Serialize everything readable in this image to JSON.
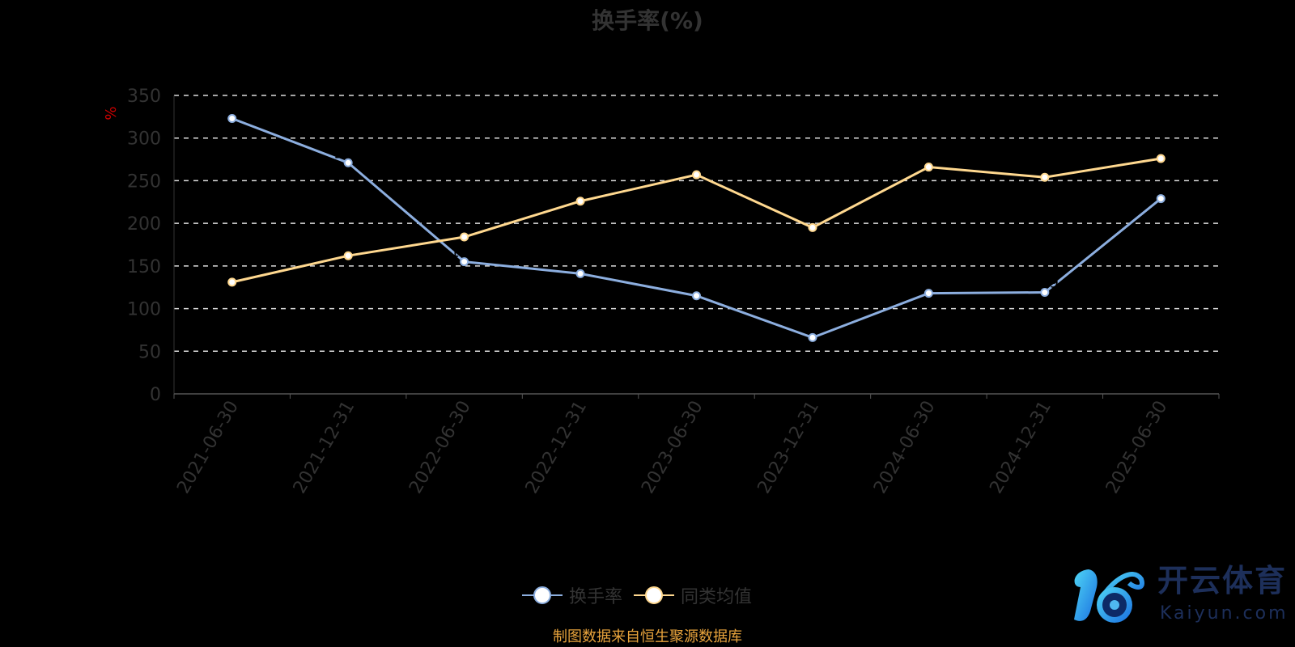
{
  "chart_data": {
    "type": "line",
    "title": "换手率(%)",
    "ylabel": "%",
    "xlabel": "",
    "ylim": [
      0,
      350
    ],
    "yticks": [
      0,
      50,
      100,
      150,
      200,
      250,
      300,
      350
    ],
    "grid": true,
    "legend_position": "bottom",
    "categories": [
      "2021-06-30",
      "2021-12-31",
      "2022-06-30",
      "2022-12-31",
      "2023-06-30",
      "2023-12-31",
      "2024-06-30",
      "2024-12-31",
      "2025-06-30"
    ],
    "series": [
      {
        "name": "换手率",
        "color": "#8caedf",
        "values": [
          323,
          271,
          155,
          141,
          115,
          66,
          118,
          119,
          229
        ]
      },
      {
        "name": "同类均值",
        "color": "#ffd88f",
        "values": [
          131,
          162,
          184,
          226,
          257,
          195,
          266,
          254,
          276
        ]
      }
    ]
  },
  "footer": "制图数据来自恒生聚源数据库",
  "watermark": {
    "cn": "开云体育",
    "en": "Kaiyun.com"
  }
}
